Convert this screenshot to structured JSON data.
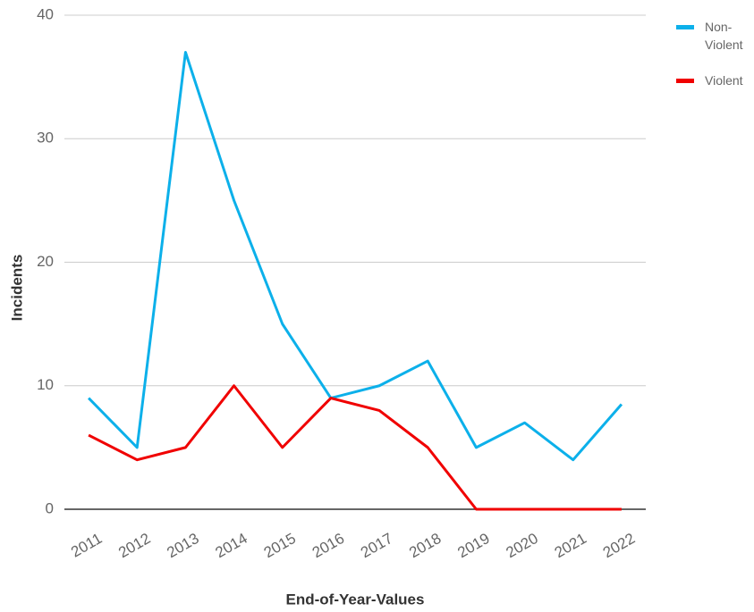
{
  "chart_data": {
    "type": "line",
    "x_label": "End-of-Year-Values",
    "y_label": "Incidents",
    "categories": [
      "2011",
      "2012",
      "2013",
      "2014",
      "2015",
      "2016",
      "2017",
      "2018",
      "2019",
      "2020",
      "2021",
      "2022"
    ],
    "series": [
      {
        "name": "Non-Violent",
        "color": "#0cb0ea",
        "values": [
          9,
          5,
          37,
          25,
          15,
          9,
          10,
          12,
          5,
          7,
          4,
          8.5
        ]
      },
      {
        "name": "Violent",
        "color": "#f00000",
        "values": [
          6,
          4,
          5,
          10,
          5,
          9,
          8,
          5,
          0,
          0,
          0,
          0
        ]
      }
    ],
    "ylim": [
      0,
      40
    ],
    "yticks": [
      0,
      10,
      20,
      30,
      40
    ],
    "grid": true,
    "legend": "top-right"
  }
}
